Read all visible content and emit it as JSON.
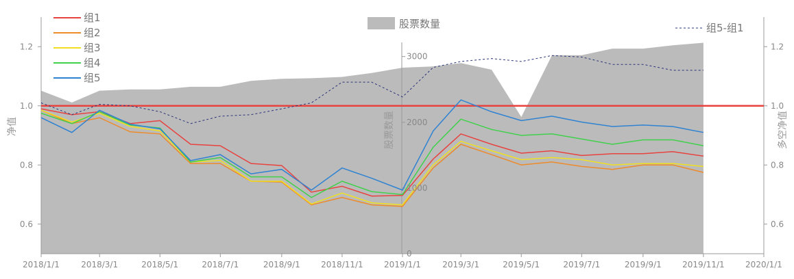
{
  "chart_data": {
    "type": "line",
    "x": [
      "2018/1/1",
      "2018/2/1",
      "2018/3/1",
      "2018/4/1",
      "2018/5/1",
      "2018/6/1",
      "2018/7/1",
      "2018/8/1",
      "2018/9/1",
      "2018/10/1",
      "2018/11/1",
      "2018/12/1",
      "2019/1/1",
      "2019/2/1",
      "2019/3/1",
      "2019/4/1",
      "2019/5/1",
      "2019/6/1",
      "2019/7/1",
      "2019/8/1",
      "2019/9/1",
      "2019/10/1",
      "2019/11/1"
    ],
    "xticks": [
      "2018/1/1",
      "2018/3/1",
      "2018/5/1",
      "2018/7/1",
      "2018/9/1",
      "2018/11/1",
      "2019/1/1",
      "2019/3/1",
      "2019/5/1",
      "2019/7/1",
      "2019/9/1",
      "2019/11/1",
      "2020/1/1"
    ],
    "xlim": [
      "2018/1/1",
      "2020/1/1"
    ],
    "left_axis": {
      "label": "净值",
      "ticks": [
        "0.6",
        "0.8",
        "1.0",
        "1.2"
      ],
      "lim": [
        0.5,
        1.3
      ]
    },
    "right_axis_ls": {
      "label": "多空净值",
      "ticks": [
        "0.6",
        "0.8",
        "1.0",
        "1.2"
      ],
      "lim": [
        0.5,
        1.3
      ]
    },
    "count_axis": {
      "label": "股票数量",
      "ticks": [
        "0",
        "1000",
        "2000",
        "3000"
      ],
      "lim": [
        0,
        3600
      ]
    },
    "reference_line": {
      "value": 1.0,
      "color": "#e8423f"
    },
    "area": {
      "name": "股票数量",
      "color": "#bbbbbb",
      "values": [
        2480,
        2300,
        2480,
        2500,
        2500,
        2540,
        2540,
        2630,
        2660,
        2670,
        2690,
        2750,
        2830,
        2850,
        2900,
        2800,
        2080,
        3020,
        3020,
        3120,
        3120,
        3170,
        3210
      ]
    },
    "series": [
      {
        "name": "组1",
        "color": "#e8423f",
        "values": [
          0.99,
          0.97,
          0.98,
          0.94,
          0.95,
          0.87,
          0.865,
          0.805,
          0.798,
          0.708,
          0.728,
          0.695,
          0.697,
          0.82,
          0.905,
          0.87,
          0.84,
          0.848,
          0.832,
          0.838,
          0.838,
          0.845,
          0.83
        ]
      },
      {
        "name": "组2",
        "color": "#ee8a2a",
        "values": [
          0.985,
          0.94,
          0.96,
          0.912,
          0.905,
          0.805,
          0.805,
          0.745,
          0.742,
          0.665,
          0.69,
          0.665,
          0.66,
          0.79,
          0.87,
          0.835,
          0.8,
          0.81,
          0.795,
          0.785,
          0.8,
          0.8,
          0.775
        ]
      },
      {
        "name": "组3",
        "color": "#f0e020",
        "values": [
          0.985,
          0.945,
          0.975,
          0.93,
          0.915,
          0.81,
          0.815,
          0.745,
          0.745,
          0.668,
          0.705,
          0.672,
          0.665,
          0.8,
          0.88,
          0.848,
          0.818,
          0.825,
          0.818,
          0.8,
          0.805,
          0.805,
          0.795
        ]
      },
      {
        "name": "组4",
        "color": "#3fd14a",
        "values": [
          0.975,
          0.94,
          0.98,
          0.935,
          0.925,
          0.81,
          0.825,
          0.76,
          0.76,
          0.69,
          0.745,
          0.71,
          0.7,
          0.86,
          0.955,
          0.92,
          0.9,
          0.905,
          0.888,
          0.87,
          0.885,
          0.885,
          0.865
        ]
      },
      {
        "name": "组5",
        "color": "#2e82d2",
        "values": [
          0.96,
          0.91,
          0.985,
          0.938,
          0.922,
          0.815,
          0.835,
          0.77,
          0.785,
          0.715,
          0.79,
          0.755,
          0.715,
          0.915,
          1.02,
          0.98,
          0.95,
          0.965,
          0.945,
          0.93,
          0.935,
          0.93,
          0.91
        ]
      },
      {
        "name": "组5-组1",
        "color": "#2a3478",
        "dashed": true,
        "axis": "right",
        "values": [
          1.01,
          0.97,
          1.005,
          1.0,
          0.98,
          0.94,
          0.965,
          0.97,
          0.99,
          1.01,
          1.08,
          1.08,
          1.03,
          1.13,
          1.15,
          1.16,
          1.15,
          1.17,
          1.165,
          1.14,
          1.14,
          1.12,
          1.12
        ]
      }
    ],
    "legend_left": [
      "组1",
      "组2",
      "组3",
      "组4",
      "组5"
    ],
    "legend_center": "股票数量",
    "legend_right": "组5-组1"
  }
}
